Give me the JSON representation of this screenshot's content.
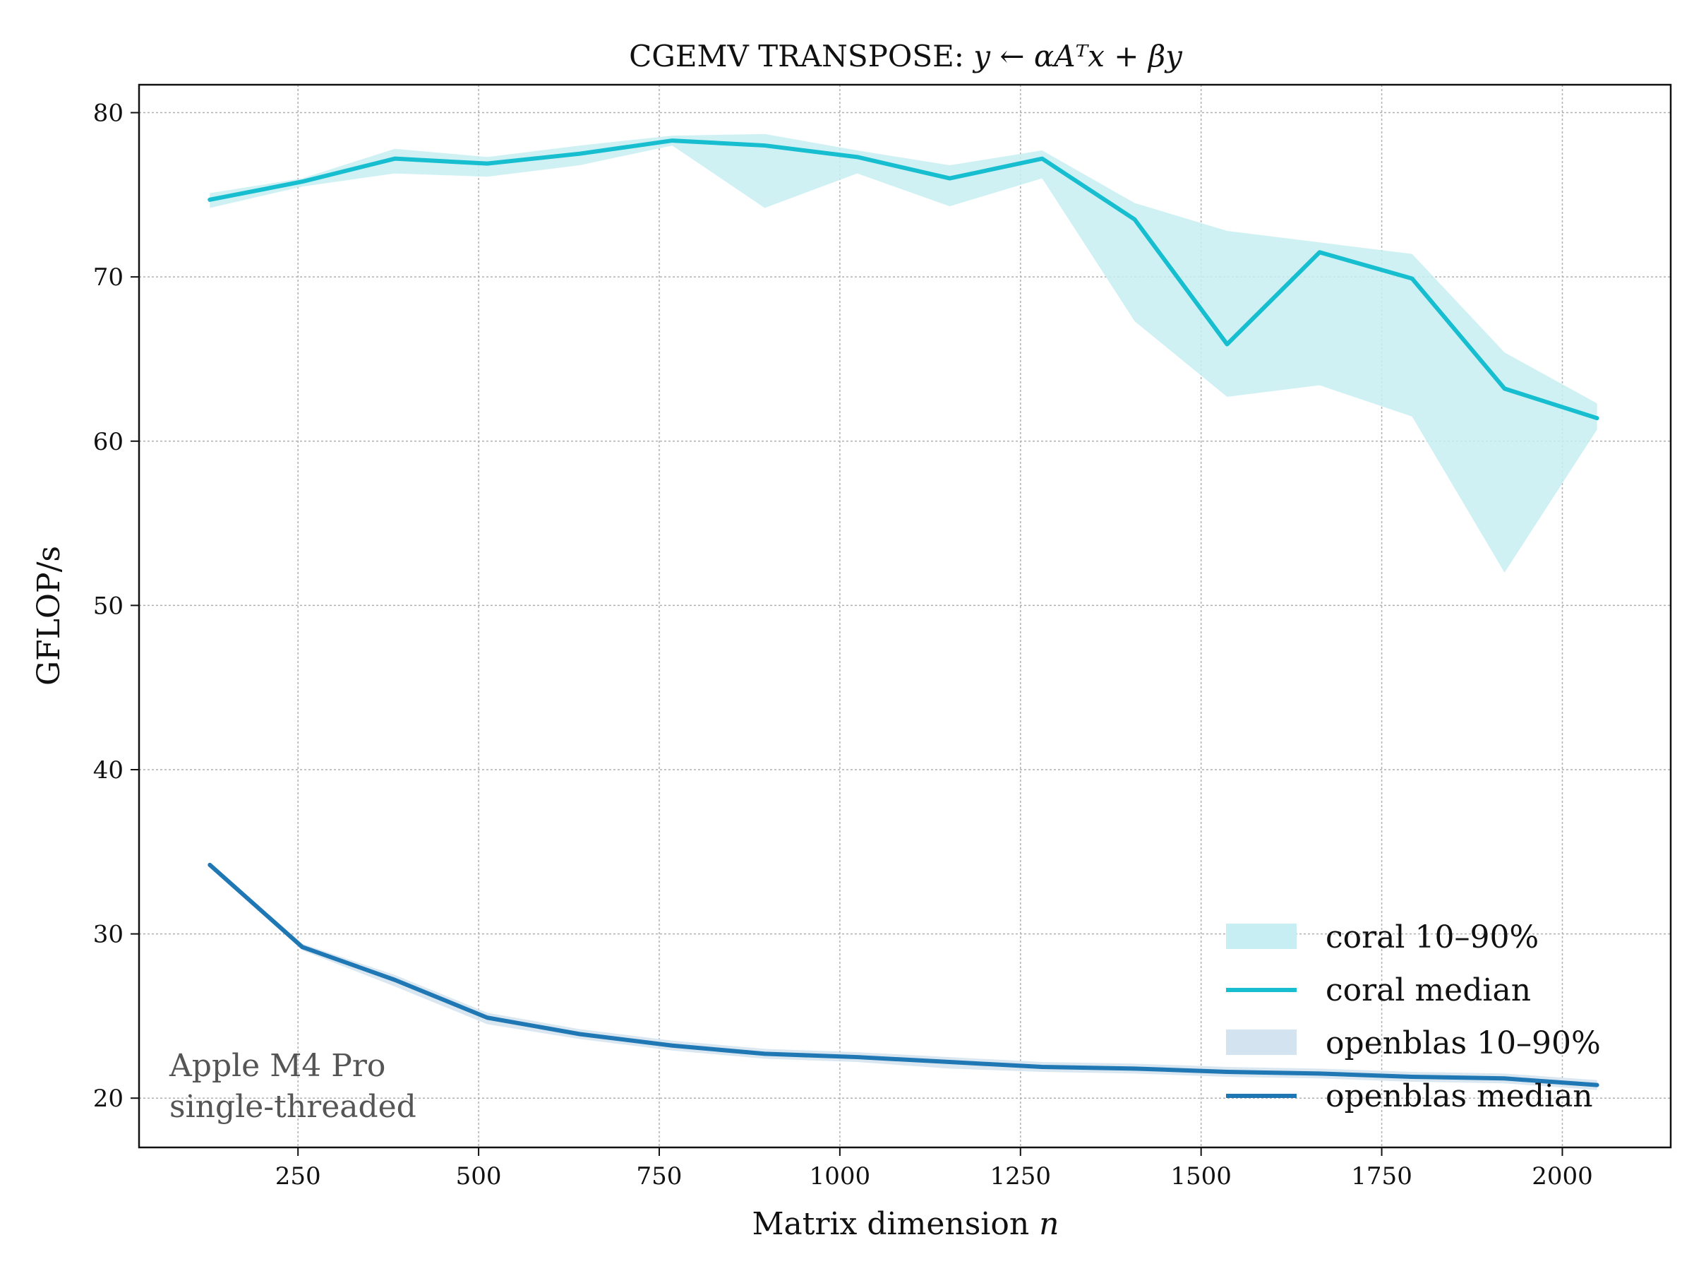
{
  "chart_data": {
    "type": "line",
    "title": "CGEMV TRANSPOSE: ",
    "title_math": "y ← αAᵀx + βy",
    "xlabel": "Matrix dimension ",
    "xlabel_math": "n",
    "ylabel": "GFLOP/s",
    "xlim": [
      30,
      2150
    ],
    "ylim": [
      17,
      81.7
    ],
    "xticks": [
      250,
      500,
      750,
      1000,
      1250,
      1500,
      1750,
      2000
    ],
    "yticks": [
      20,
      30,
      40,
      50,
      60,
      70,
      80
    ],
    "grid": true,
    "legend_position": "bottom-right",
    "annotation": [
      "Apple M4 Pro",
      "single-threaded"
    ],
    "x": [
      128,
      256,
      384,
      512,
      640,
      768,
      896,
      1024,
      1152,
      1280,
      1408,
      1536,
      1664,
      1792,
      1920,
      2048
    ],
    "series": [
      {
        "name": "coral median",
        "band_name": "coral 10–90%",
        "color": "#17becf",
        "band_color": "#c7eef2",
        "median": [
          74.7,
          75.8,
          77.2,
          76.9,
          77.5,
          78.3,
          78.0,
          77.3,
          76.0,
          77.2,
          73.5,
          65.9,
          71.5,
          69.9,
          63.2,
          61.4
        ],
        "p10": [
          74.2,
          75.5,
          76.3,
          76.1,
          76.8,
          78.0,
          74.2,
          76.3,
          74.3,
          76.0,
          67.3,
          62.7,
          63.4,
          61.5,
          52.0,
          60.7
        ],
        "p90": [
          75.1,
          76.0,
          77.8,
          77.3,
          78.0,
          78.6,
          78.7,
          77.7,
          76.8,
          77.7,
          74.5,
          72.8,
          72.1,
          71.4,
          65.4,
          62.3
        ]
      },
      {
        "name": "openblas median",
        "band_name": "openblas 10–90%",
        "color": "#1f77b4",
        "band_color": "#d3e3ef",
        "median": [
          34.2,
          29.2,
          27.2,
          24.9,
          23.9,
          23.2,
          22.7,
          22.5,
          22.2,
          21.9,
          21.8,
          21.6,
          21.5,
          21.3,
          21.2,
          20.8
        ],
        "p10": [
          34.1,
          29.0,
          26.8,
          24.5,
          23.6,
          22.9,
          22.4,
          22.2,
          21.8,
          21.6,
          21.5,
          21.3,
          21.2,
          21.0,
          20.9,
          20.5
        ],
        "p90": [
          34.3,
          29.4,
          27.5,
          25.2,
          24.2,
          23.5,
          23.0,
          22.8,
          22.5,
          22.2,
          22.1,
          21.9,
          21.8,
          21.6,
          21.5,
          21.1
        ]
      }
    ]
  }
}
